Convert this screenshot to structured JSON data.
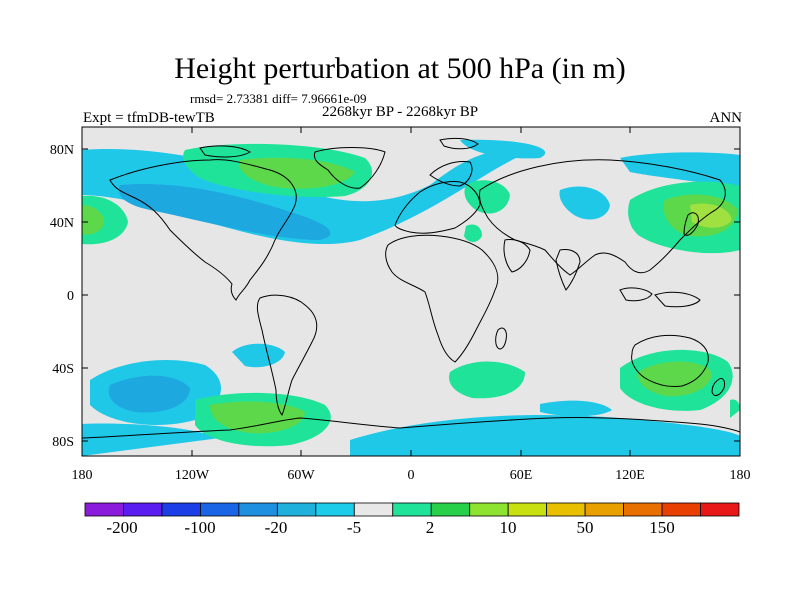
{
  "title": "Height perturbation at 500 hPa (in m)",
  "stats_text": "rmsd= 2.73381  diff= 7.96661e-09",
  "experiment_label": "Expt = tfmDB-tewTB",
  "period_label": "2268kyr BP - 2268kyr BP",
  "season_label": "ANN",
  "axes": {
    "lat_ticks": [
      "80N",
      "40N",
      "0",
      "40S",
      "80S"
    ],
    "lon_ticks": [
      "180",
      "120W",
      "60W",
      "0",
      "60E",
      "120E",
      "180"
    ]
  },
  "colorbar": {
    "colors": [
      "#8c1cdc",
      "#5a1ef0",
      "#1c3ee6",
      "#1a64e6",
      "#1e90e0",
      "#20b0dc",
      "#1ccce8",
      "#e8e8e8",
      "#20e39a",
      "#28d04a",
      "#8ee230",
      "#c8e010",
      "#e8c000",
      "#e8a000",
      "#e87000",
      "#e84000",
      "#e81818"
    ],
    "labels": [
      "-200",
      "-100",
      "-20",
      "-5",
      "2",
      "10",
      "50",
      "150"
    ]
  },
  "colors": {
    "background": "#e6e6e6",
    "neg_light": "#20c8e8",
    "neg_mid": "#1ea8e0",
    "pos_light": "#20e39a",
    "pos_mid": "#5cd84a",
    "pos_strong": "#a0e040"
  }
}
